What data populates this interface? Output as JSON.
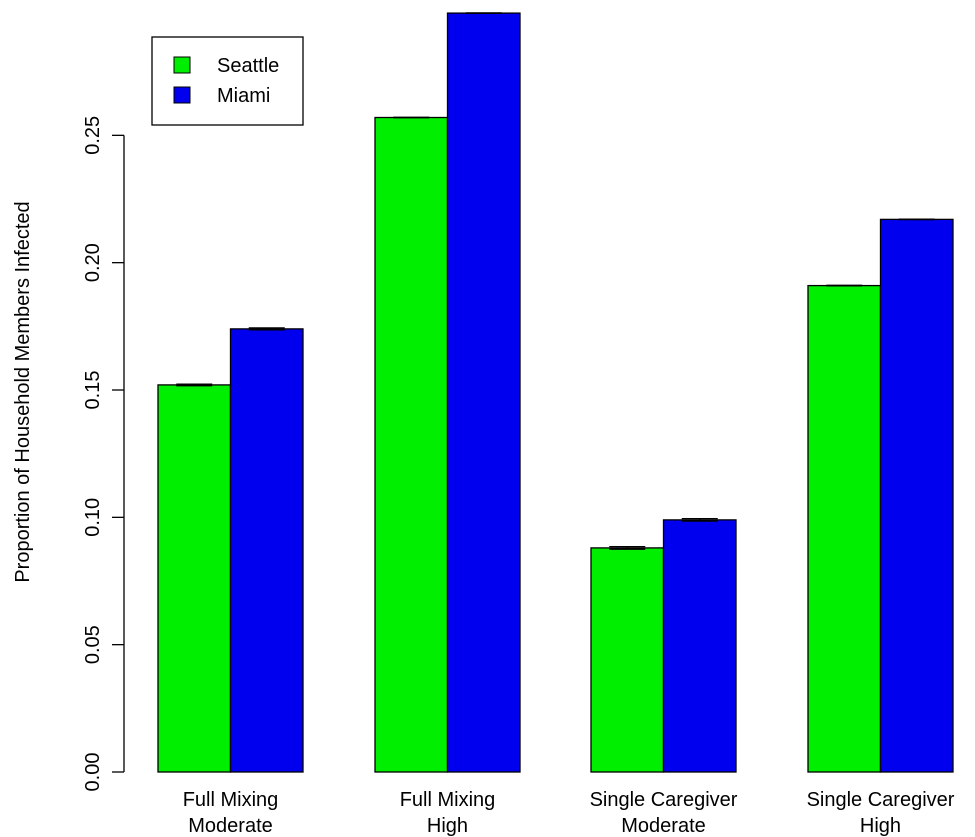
{
  "chart_data": {
    "type": "bar",
    "title": "",
    "xlabel": "",
    "ylabel": "Proportion of Household Members Infected",
    "categories": [
      [
        "Full Mixing",
        "Moderate"
      ],
      [
        "Full Mixing",
        "High"
      ],
      [
        "Single Caregiver",
        "Moderate"
      ],
      [
        "Single Caregiver",
        "High"
      ]
    ],
    "series": [
      {
        "name": "Seattle",
        "color": "#00ee00",
        "values": [
          0.152,
          0.257,
          0.088,
          0.191
        ],
        "errors": [
          0.0003,
          0.0001,
          0.0005,
          0.0001
        ]
      },
      {
        "name": "Miami",
        "color": "#0000ee",
        "values": [
          0.174,
          0.298,
          0.099,
          0.217
        ],
        "errors": [
          0.0004,
          0.0001,
          0.0005,
          0.0001
        ]
      }
    ],
    "ylim": [
      0,
      0.3
    ],
    "yticks": [
      "0.00",
      "0.05",
      "0.10",
      "0.15",
      "0.20",
      "0.25"
    ],
    "legend": {
      "position": "top-left"
    },
    "grid": false
  }
}
